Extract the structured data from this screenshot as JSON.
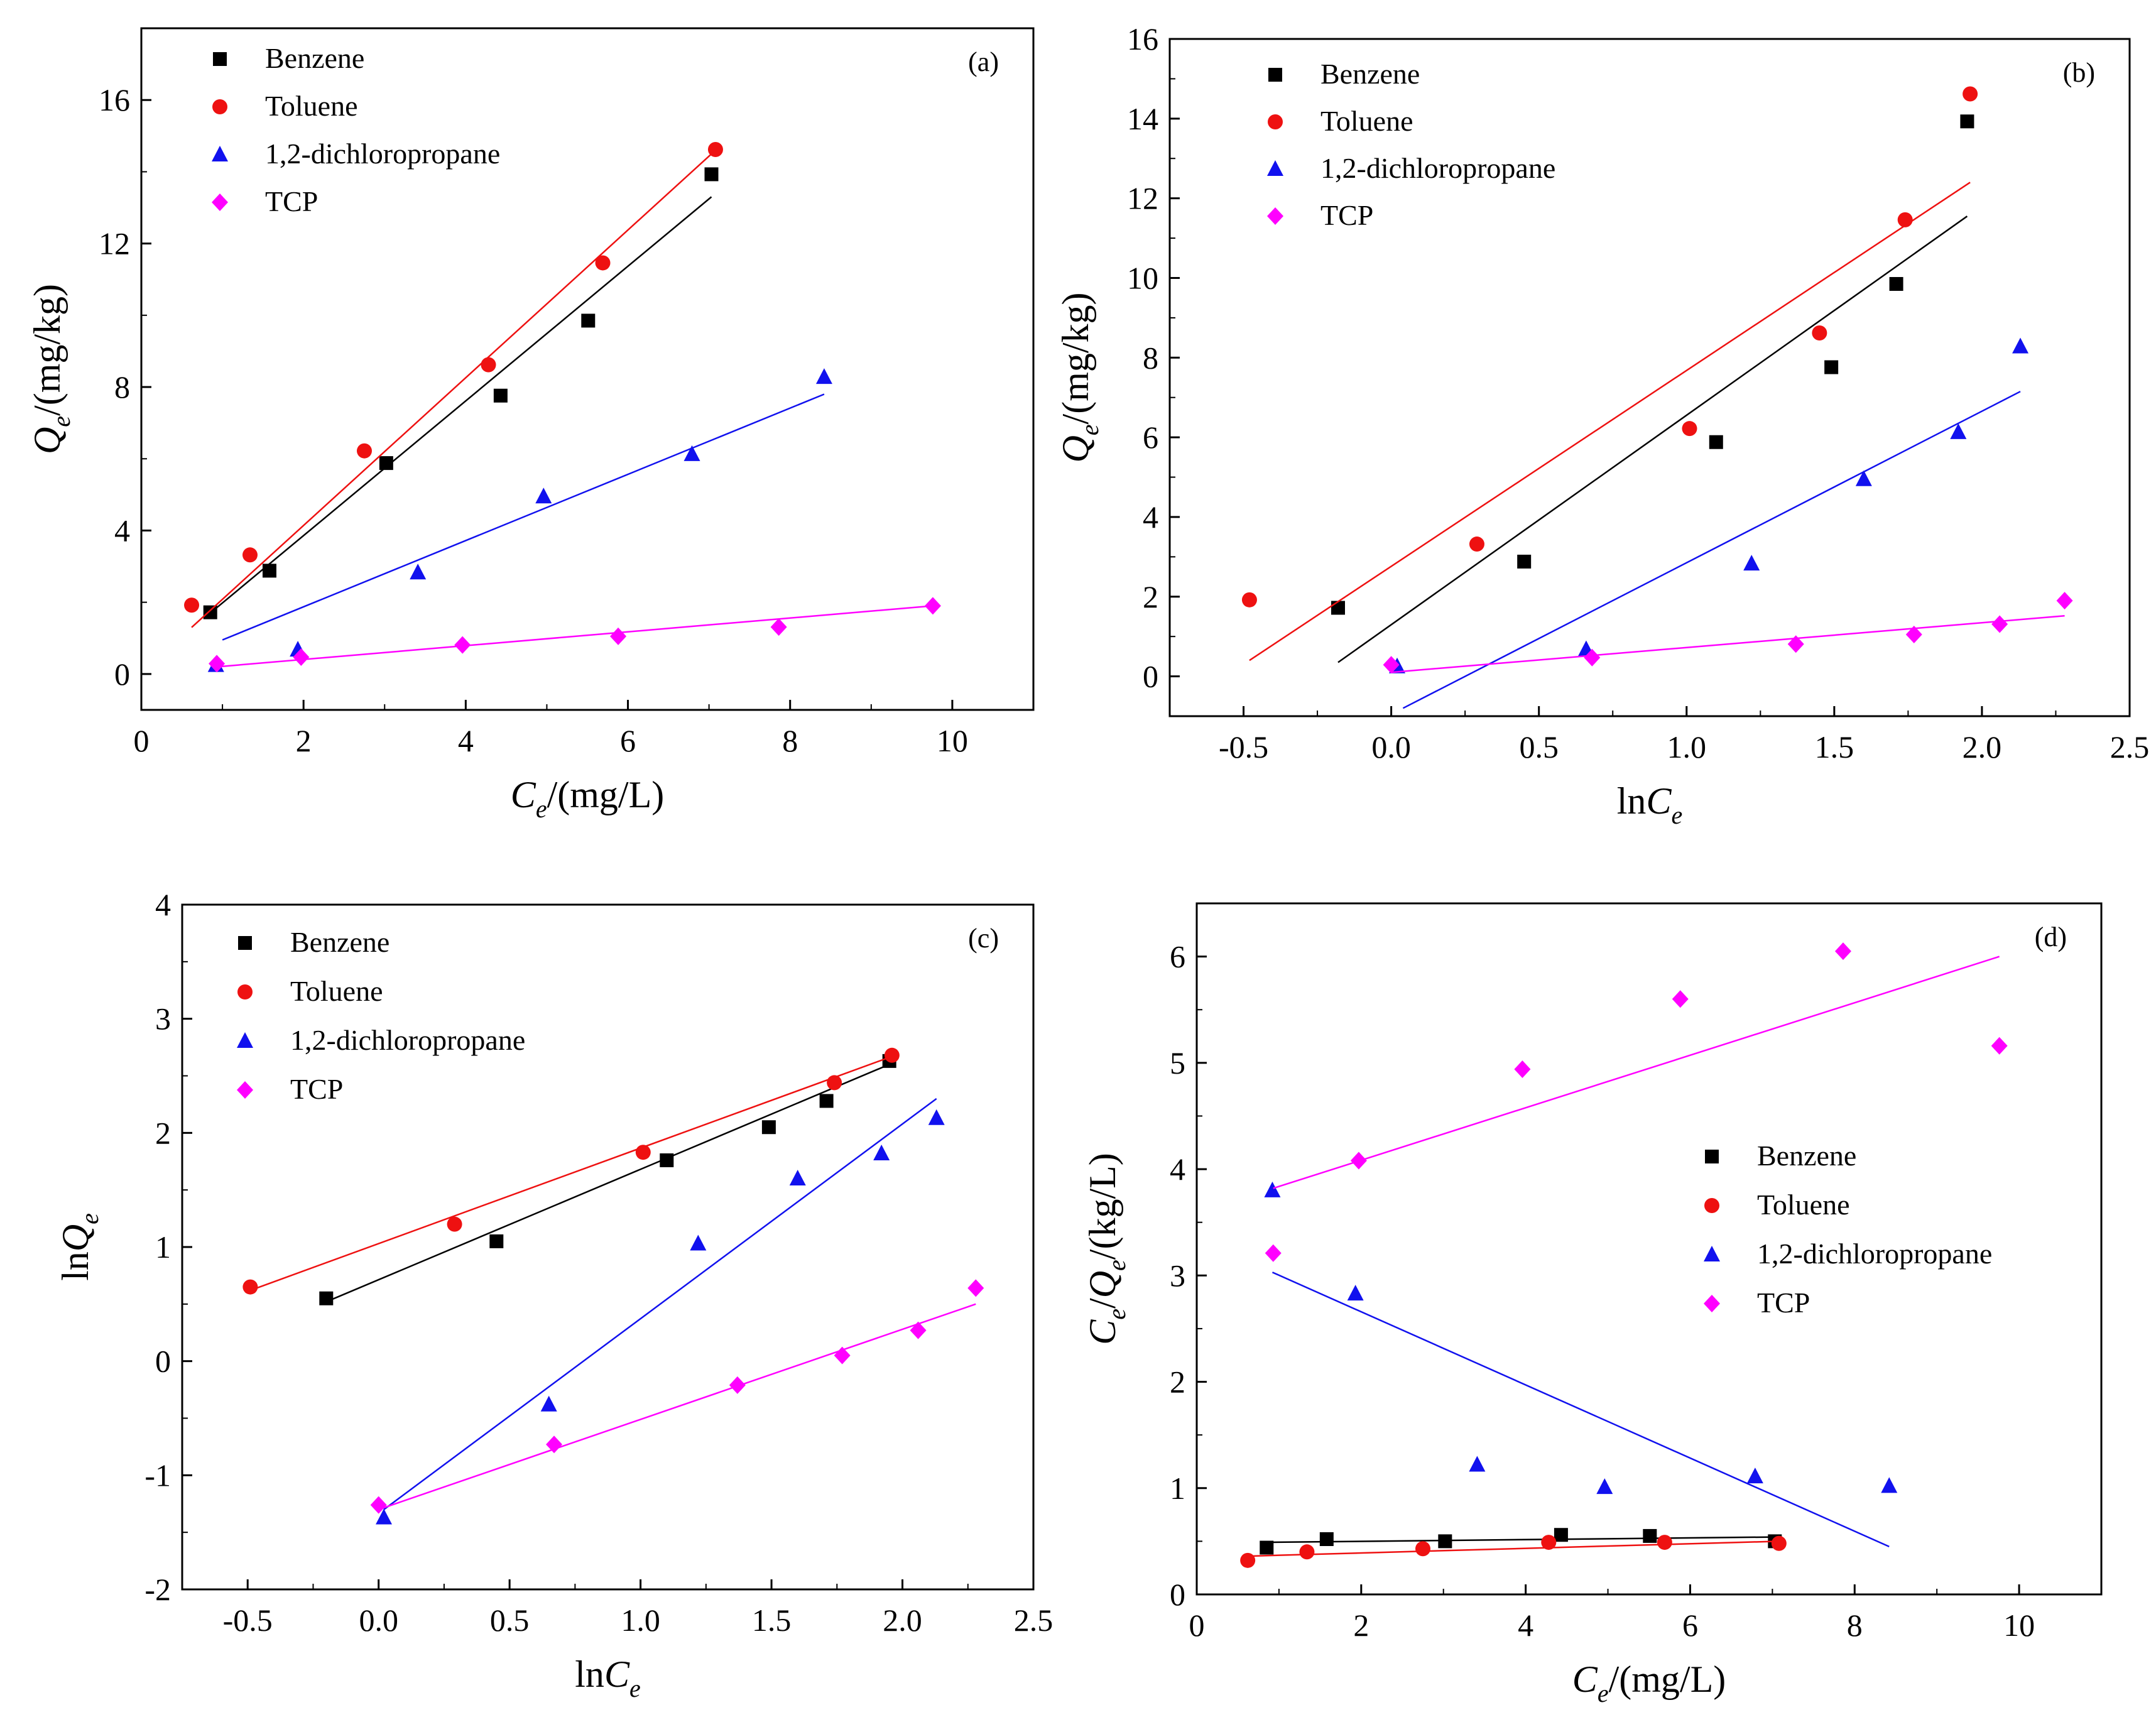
{
  "figure": {
    "colors": {
      "Benzene": "#000000",
      "Toluene": "#ee1111",
      "1,2-dichloropropane": "#1111ee",
      "TCP": "#ff00ff"
    }
  },
  "chart_data": [
    {
      "id": "a",
      "type": "scatter",
      "panel_label": "(a)",
      "xlabel": {
        "main": "C",
        "sub": "e",
        "rest": "/(mg/L)"
      },
      "ylabel": {
        "main": "Q",
        "sub": "e",
        "rest": "/(mg/kg)"
      },
      "xlim": [
        0,
        11
      ],
      "ylim": [
        -1,
        18
      ],
      "xticks": [
        0,
        2,
        4,
        6,
        8,
        10
      ],
      "yticks": [
        0,
        4,
        8,
        12,
        16
      ],
      "xtick_labels": [
        "0",
        "2",
        "4",
        "6",
        "8",
        "10"
      ],
      "ytick_labels": [
        "0",
        "4",
        "8",
        "12",
        "16"
      ],
      "legend_position": "top-left",
      "series": [
        {
          "name": "Benzene",
          "marker": "square",
          "x": [
            0.85,
            1.58,
            3.02,
            4.43,
            5.51,
            7.03
          ],
          "y": [
            1.72,
            2.88,
            5.88,
            7.76,
            9.85,
            13.93
          ],
          "fit": [
            [
              0.85,
              1.7
            ],
            [
              7.03,
              13.3
            ]
          ]
        },
        {
          "name": "Toluene",
          "marker": "circle",
          "x": [
            0.62,
            1.34,
            2.75,
            4.28,
            5.69,
            7.08
          ],
          "y": [
            1.92,
            3.32,
            6.22,
            8.62,
            11.46,
            14.62
          ],
          "fit": [
            [
              0.62,
              1.3
            ],
            [
              7.08,
              14.6
            ]
          ]
        },
        {
          "name": "1,2-dichloropropane",
          "marker": "triangle",
          "x": [
            0.92,
            1.93,
            3.41,
            4.96,
            6.79,
            8.42
          ],
          "y": [
            0.25,
            0.68,
            2.83,
            4.95,
            6.13,
            8.28
          ],
          "fit": [
            [
              1.0,
              0.95
            ],
            [
              8.42,
              7.8
            ]
          ]
        },
        {
          "name": "TCP",
          "marker": "diamond",
          "x": [
            0.93,
            1.97,
            3.96,
            5.88,
            7.86,
            9.76
          ],
          "y": [
            0.29,
            0.47,
            0.81,
            1.05,
            1.31,
            1.9
          ],
          "fit": [
            [
              0.93,
              0.2
            ],
            [
              9.76,
              1.9
            ]
          ]
        }
      ]
    },
    {
      "id": "b",
      "type": "scatter",
      "panel_label": "(b)",
      "xlabel": {
        "main": "lnC",
        "sub": "e",
        "rest": ""
      },
      "ylabel": {
        "main": "Q",
        "sub": "e",
        "rest": "/(mg/kg)"
      },
      "xlim": [
        -0.75,
        2.5
      ],
      "ylim": [
        -1,
        16
      ],
      "xticks": [
        -0.5,
        0,
        0.5,
        1,
        1.5,
        2,
        2.5
      ],
      "yticks": [
        0,
        2,
        4,
        6,
        8,
        10,
        12,
        14,
        16
      ],
      "xtick_labels": [
        "-0.5",
        "0.0",
        "0.5",
        "1.0",
        "1.5",
        "2.0",
        "2.5"
      ],
      "ytick_labels": [
        "0",
        "2",
        "4",
        "6",
        "8",
        "10",
        "12",
        "14",
        "16"
      ],
      "legend_position": "top-left",
      "series": [
        {
          "name": "Benzene",
          "marker": "square",
          "x": [
            -0.18,
            0.45,
            1.1,
            1.49,
            1.71,
            1.95
          ],
          "y": [
            1.72,
            2.88,
            5.88,
            7.76,
            9.85,
            13.93
          ],
          "fit": [
            [
              -0.18,
              0.35
            ],
            [
              1.95,
              11.55
            ]
          ]
        },
        {
          "name": "Toluene",
          "marker": "circle",
          "x": [
            -0.48,
            0.29,
            1.01,
            1.45,
            1.74,
            1.96
          ],
          "y": [
            1.92,
            3.32,
            6.22,
            8.62,
            11.46,
            14.62
          ],
          "fit": [
            [
              -0.48,
              0.4
            ],
            [
              1.96,
              12.4
            ]
          ]
        },
        {
          "name": "1,2-dichloropropane",
          "marker": "triangle",
          "x": [
            0.02,
            0.66,
            1.22,
            1.6,
            1.92,
            2.13
          ],
          "y": [
            0.25,
            0.68,
            2.83,
            4.95,
            6.13,
            8.28
          ],
          "fit": [
            [
              0.04,
              -0.8
            ],
            [
              2.13,
              7.15
            ]
          ]
        },
        {
          "name": "TCP",
          "marker": "diamond",
          "x": [
            0.0,
            0.68,
            1.37,
            1.77,
            2.06,
            2.28
          ],
          "y": [
            0.29,
            0.47,
            0.81,
            1.05,
            1.31,
            1.9
          ],
          "fit": [
            [
              0.0,
              0.1
            ],
            [
              2.28,
              1.52
            ]
          ]
        }
      ]
    },
    {
      "id": "c",
      "type": "scatter",
      "panel_label": "(c)",
      "xlabel": {
        "main": "lnC",
        "sub": "e",
        "rest": ""
      },
      "ylabel": {
        "main": "lnQ",
        "sub": "e",
        "rest": ""
      },
      "xlim": [
        -0.75,
        2.5
      ],
      "ylim": [
        -2,
        4
      ],
      "xticks": [
        -0.5,
        0,
        0.5,
        1,
        1.5,
        2,
        2.5
      ],
      "yticks": [
        -2,
        -1,
        0,
        1,
        2,
        3,
        4
      ],
      "xtick_labels": [
        "-0.5",
        "0.0",
        "0.5",
        "1.0",
        "1.5",
        "2.0",
        "2.5"
      ],
      "ytick_labels": [
        "-2",
        "-1",
        "0",
        "1",
        "2",
        "3",
        "4"
      ],
      "legend_position": "top-left",
      "series": [
        {
          "name": "Benzene",
          "marker": "square",
          "x": [
            -0.2,
            0.45,
            1.1,
            1.49,
            1.71,
            1.95
          ],
          "y": [
            0.55,
            1.05,
            1.76,
            2.05,
            2.28,
            2.63
          ],
          "fit": [
            [
              -0.2,
              0.52
            ],
            [
              1.95,
              2.6
            ]
          ]
        },
        {
          "name": "Toluene",
          "marker": "circle",
          "x": [
            -0.49,
            0.29,
            1.01,
            1.74,
            1.96
          ],
          "y": [
            0.65,
            1.2,
            1.83,
            2.44,
            2.68
          ],
          "fit": [
            [
              -0.49,
              0.62
            ],
            [
              1.96,
              2.67
            ]
          ]
        },
        {
          "name": "1,2-dichloropropane",
          "marker": "triangle",
          "x": [
            0.02,
            0.65,
            1.22,
            1.6,
            1.92,
            2.13
          ],
          "y": [
            -1.37,
            -0.38,
            1.03,
            1.6,
            1.82,
            2.13
          ],
          "fit": [
            [
              0.02,
              -1.3
            ],
            [
              2.13,
              2.3
            ]
          ]
        },
        {
          "name": "TCP",
          "marker": "diamond",
          "x": [
            0.0,
            0.67,
            1.37,
            1.77,
            2.06,
            2.28
          ],
          "y": [
            -1.26,
            -0.73,
            -0.21,
            0.05,
            0.27,
            0.64
          ],
          "fit": [
            [
              0.0,
              -1.3
            ],
            [
              2.28,
              0.5
            ]
          ]
        }
      ]
    },
    {
      "id": "d",
      "type": "scatter",
      "panel_label": "(d)",
      "xlabel": {
        "main": "C",
        "sub": "e",
        "rest": "/(mg/L)"
      },
      "ylabel": {
        "main": "C",
        "sub": "e",
        "rest": "/(kg/L)",
        "mid": "/Q",
        "sub2": "e"
      },
      "xlim": [
        0,
        11
      ],
      "ylim": [
        0,
        6.5
      ],
      "xticks": [
        0,
        2,
        4,
        6,
        8,
        10
      ],
      "yticks": [
        0,
        1,
        2,
        3,
        4,
        5,
        6
      ],
      "xtick_labels": [
        "0",
        "2",
        "4",
        "6",
        "8",
        "10"
      ],
      "ytick_labels": [
        "0",
        "1",
        "2",
        "3",
        "4",
        "5",
        "6"
      ],
      "legend_position": "center-right",
      "series": [
        {
          "name": "Benzene",
          "marker": "square",
          "x": [
            0.85,
            1.58,
            3.02,
            4.43,
            5.51,
            7.03
          ],
          "y": [
            0.44,
            0.52,
            0.5,
            0.56,
            0.55,
            0.5
          ],
          "fit": [
            [
              0.85,
              0.49
            ],
            [
              7.03,
              0.54
            ]
          ]
        },
        {
          "name": "Toluene",
          "marker": "circle",
          "x": [
            0.62,
            1.34,
            2.75,
            4.28,
            5.69,
            7.08
          ],
          "y": [
            0.32,
            0.4,
            0.43,
            0.49,
            0.49,
            0.48
          ],
          "fit": [
            [
              0.62,
              0.36
            ],
            [
              7.08,
              0.5
            ]
          ]
        },
        {
          "name": "1,2-dichloropropane",
          "marker": "triangle",
          "x": [
            0.92,
            1.93,
            3.41,
            4.96,
            6.79,
            8.42
          ],
          "y": [
            3.8,
            2.83,
            1.22,
            1.01,
            1.11,
            1.02
          ],
          "fit": [
            [
              0.92,
              3.03
            ],
            [
              8.42,
              0.45
            ]
          ]
        },
        {
          "name": "TCP",
          "marker": "diamond",
          "x": [
            0.93,
            1.97,
            3.96,
            5.88,
            7.86,
            9.76
          ],
          "y": [
            3.21,
            4.08,
            4.94,
            5.6,
            6.05,
            5.16
          ],
          "fit": [
            [
              0.93,
              3.82
            ],
            [
              9.76,
              6.0
            ]
          ]
        }
      ]
    }
  ]
}
